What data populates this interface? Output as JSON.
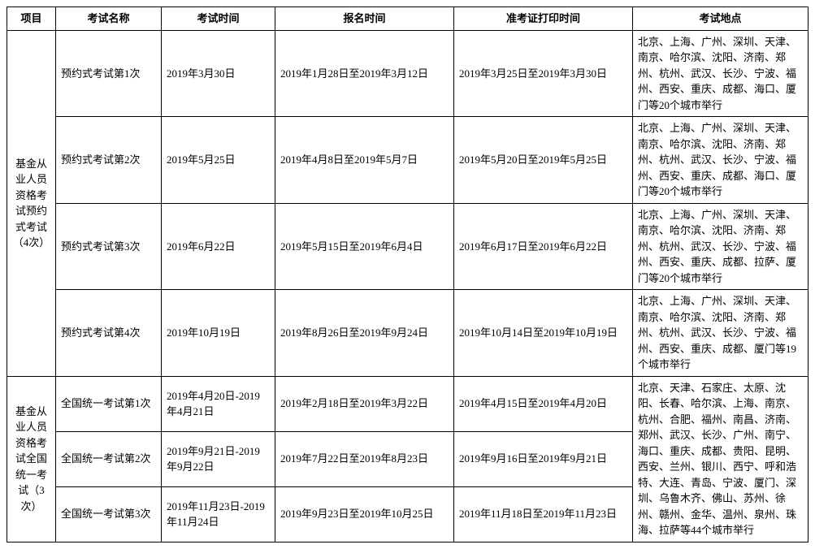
{
  "table": {
    "headers": {
      "project": "项目",
      "exam_name": "考试名称",
      "exam_time": "考试时间",
      "reg_time": "报名时间",
      "print_time": "准考证打印时间",
      "location": "考试地点"
    },
    "group1": {
      "project": "基金从业人员资格考试预约式考试（4次）",
      "rows": [
        {
          "exam_name": "预约式考试第1次",
          "exam_time": "2019年3月30日",
          "reg_time": "2019年1月28日至2019年3月12日",
          "print_time": "2019年3月25日至2019年3月30日",
          "location": "北京、上海、广州、深圳、天津、南京、哈尔滨、沈阳、济南、郑州、杭州、武汉、长沙、宁波、福州、西安、重庆、成都、海口、厦门等20个城市举行"
        },
        {
          "exam_name": "预约式考试第2次",
          "exam_time": "2019年5月25日",
          "reg_time": "2019年4月8日至2019年5月7日",
          "print_time": "2019年5月20日至2019年5月25日",
          "location": "北京、上海、广州、深圳、天津、南京、哈尔滨、沈阳、济南、郑州、杭州、武汉、长沙、宁波、福州、西安、重庆、成都、海口、厦门等20个城市举行"
        },
        {
          "exam_name": "预约式考试第3次",
          "exam_time": "2019年6月22日",
          "reg_time": "2019年5月15日至2019年6月4日",
          "print_time": "2019年6月17日至2019年6月22日",
          "location": "北京、上海、广州、深圳、天津、南京、哈尔滨、沈阳、济南、郑州、杭州、武汉、长沙、宁波、福州、西安、重庆、成都、拉萨、厦门等20个城市举行"
        },
        {
          "exam_name": "预约式考试第4次",
          "exam_time": "2019年10月19日",
          "reg_time": "2019年8月26日至2019年9月24日",
          "print_time": "2019年10月14日至2019年10月19日",
          "location": "北京、上海、广州、深圳、天津、南京、哈尔滨、沈阳、济南、郑州、杭州、武汉、长沙、宁波、福州、西安、重庆、成都、厦门等19个城市举行"
        }
      ]
    },
    "group2": {
      "project": "基金从业人员资格考试全国统一考试（3次）",
      "location": "北京、天津、石家庄、太原、沈阳、长春、哈尔滨、上海、南京、杭州、合肥、福州、南昌、济南、郑州、武汉、长沙、广州、南宁、海口、重庆、成都、贵阳、昆明、西安、兰州、银川、西宁、呼和浩特、大连、青岛、宁波、厦门、深圳、乌鲁木齐、佛山、苏州、徐州、赣州、金华、温州、泉州、珠海、拉萨等44个城市举行",
      "rows": [
        {
          "exam_name": "全国统一考试第1次",
          "exam_time": "2019年4月20日-2019年4月21日",
          "reg_time": "2019年2月18日至2019年3月22日",
          "print_time": "2019年4月15日至2019年4月20日"
        },
        {
          "exam_name": "全国统一考试第2次",
          "exam_time": "2019年9月21日-2019年9月22日",
          "reg_time": "2019年7月22日至2019年8月23日",
          "print_time": "2019年9月16日至2019年9月21日"
        },
        {
          "exam_name": "全国统一考试第3次",
          "exam_time": "2019年11月23日-2019年11月24日",
          "reg_time": "2019年9月23日至2019年10月25日",
          "print_time": "2019年11月18日至2019年11月23日"
        }
      ]
    },
    "styles": {
      "border_color": "#000000",
      "background_color": "#ffffff",
      "text_color": "#000000",
      "font_size": 13,
      "font_family": "SimSun"
    }
  }
}
